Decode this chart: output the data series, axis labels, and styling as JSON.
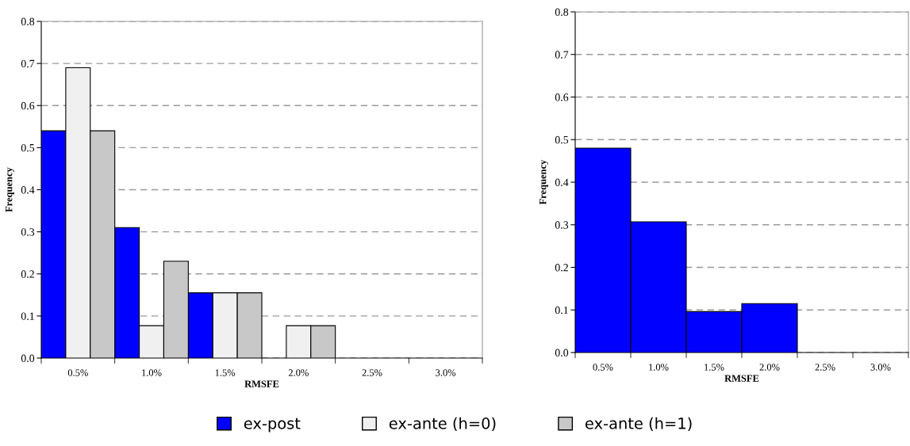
{
  "chart_data": [
    {
      "type": "bar",
      "xlabel": "RMSFE",
      "ylabel": "Frequency",
      "categories": [
        "0.5%",
        "1.0%",
        "1.5%",
        "2.0%",
        "2.5%",
        "3.0%"
      ],
      "series": [
        {
          "name": "ex-post",
          "color": "#0000ff",
          "values": [
            0.54,
            0.31,
            0.155,
            0,
            0,
            0
          ]
        },
        {
          "name": "ex-ante (h=0)",
          "color": "#f0f0f0",
          "values": [
            0.69,
            0.077,
            0.155,
            0.077,
            0,
            0
          ]
        },
        {
          "name": "ex-ante (h=1)",
          "color": "#c8c8c8",
          "values": [
            0.54,
            0.23,
            0.155,
            0.077,
            0,
            0
          ]
        }
      ],
      "ylim": [
        0,
        0.8
      ],
      "yticks": [
        {
          "value": 0,
          "label": "0.0"
        },
        0.1,
        0.2,
        0.3,
        0.4,
        0.5,
        0.6,
        0.7,
        0.8
      ],
      "grid": "y",
      "legend": "bottom"
    },
    {
      "type": "bar",
      "xlabel": "RMSFE",
      "ylabel": "Frequency",
      "categories": [
        "0.5%",
        "1.0%",
        "1.5%",
        "2.0%",
        "2.5%",
        "3.0%"
      ],
      "series": [
        {
          "color": "#0000ff",
          "values": [
            0.48,
            0.307,
            0.096,
            0.115,
            0,
            0
          ]
        }
      ],
      "ylim": [
        0,
        0.8
      ],
      "yticks": [
        {
          "value": 0,
          "label": "0.0"
        },
        0.1,
        0.2,
        0.3,
        0.4,
        0.5,
        0.6,
        0.7,
        0.8
      ],
      "grid": "y"
    }
  ]
}
